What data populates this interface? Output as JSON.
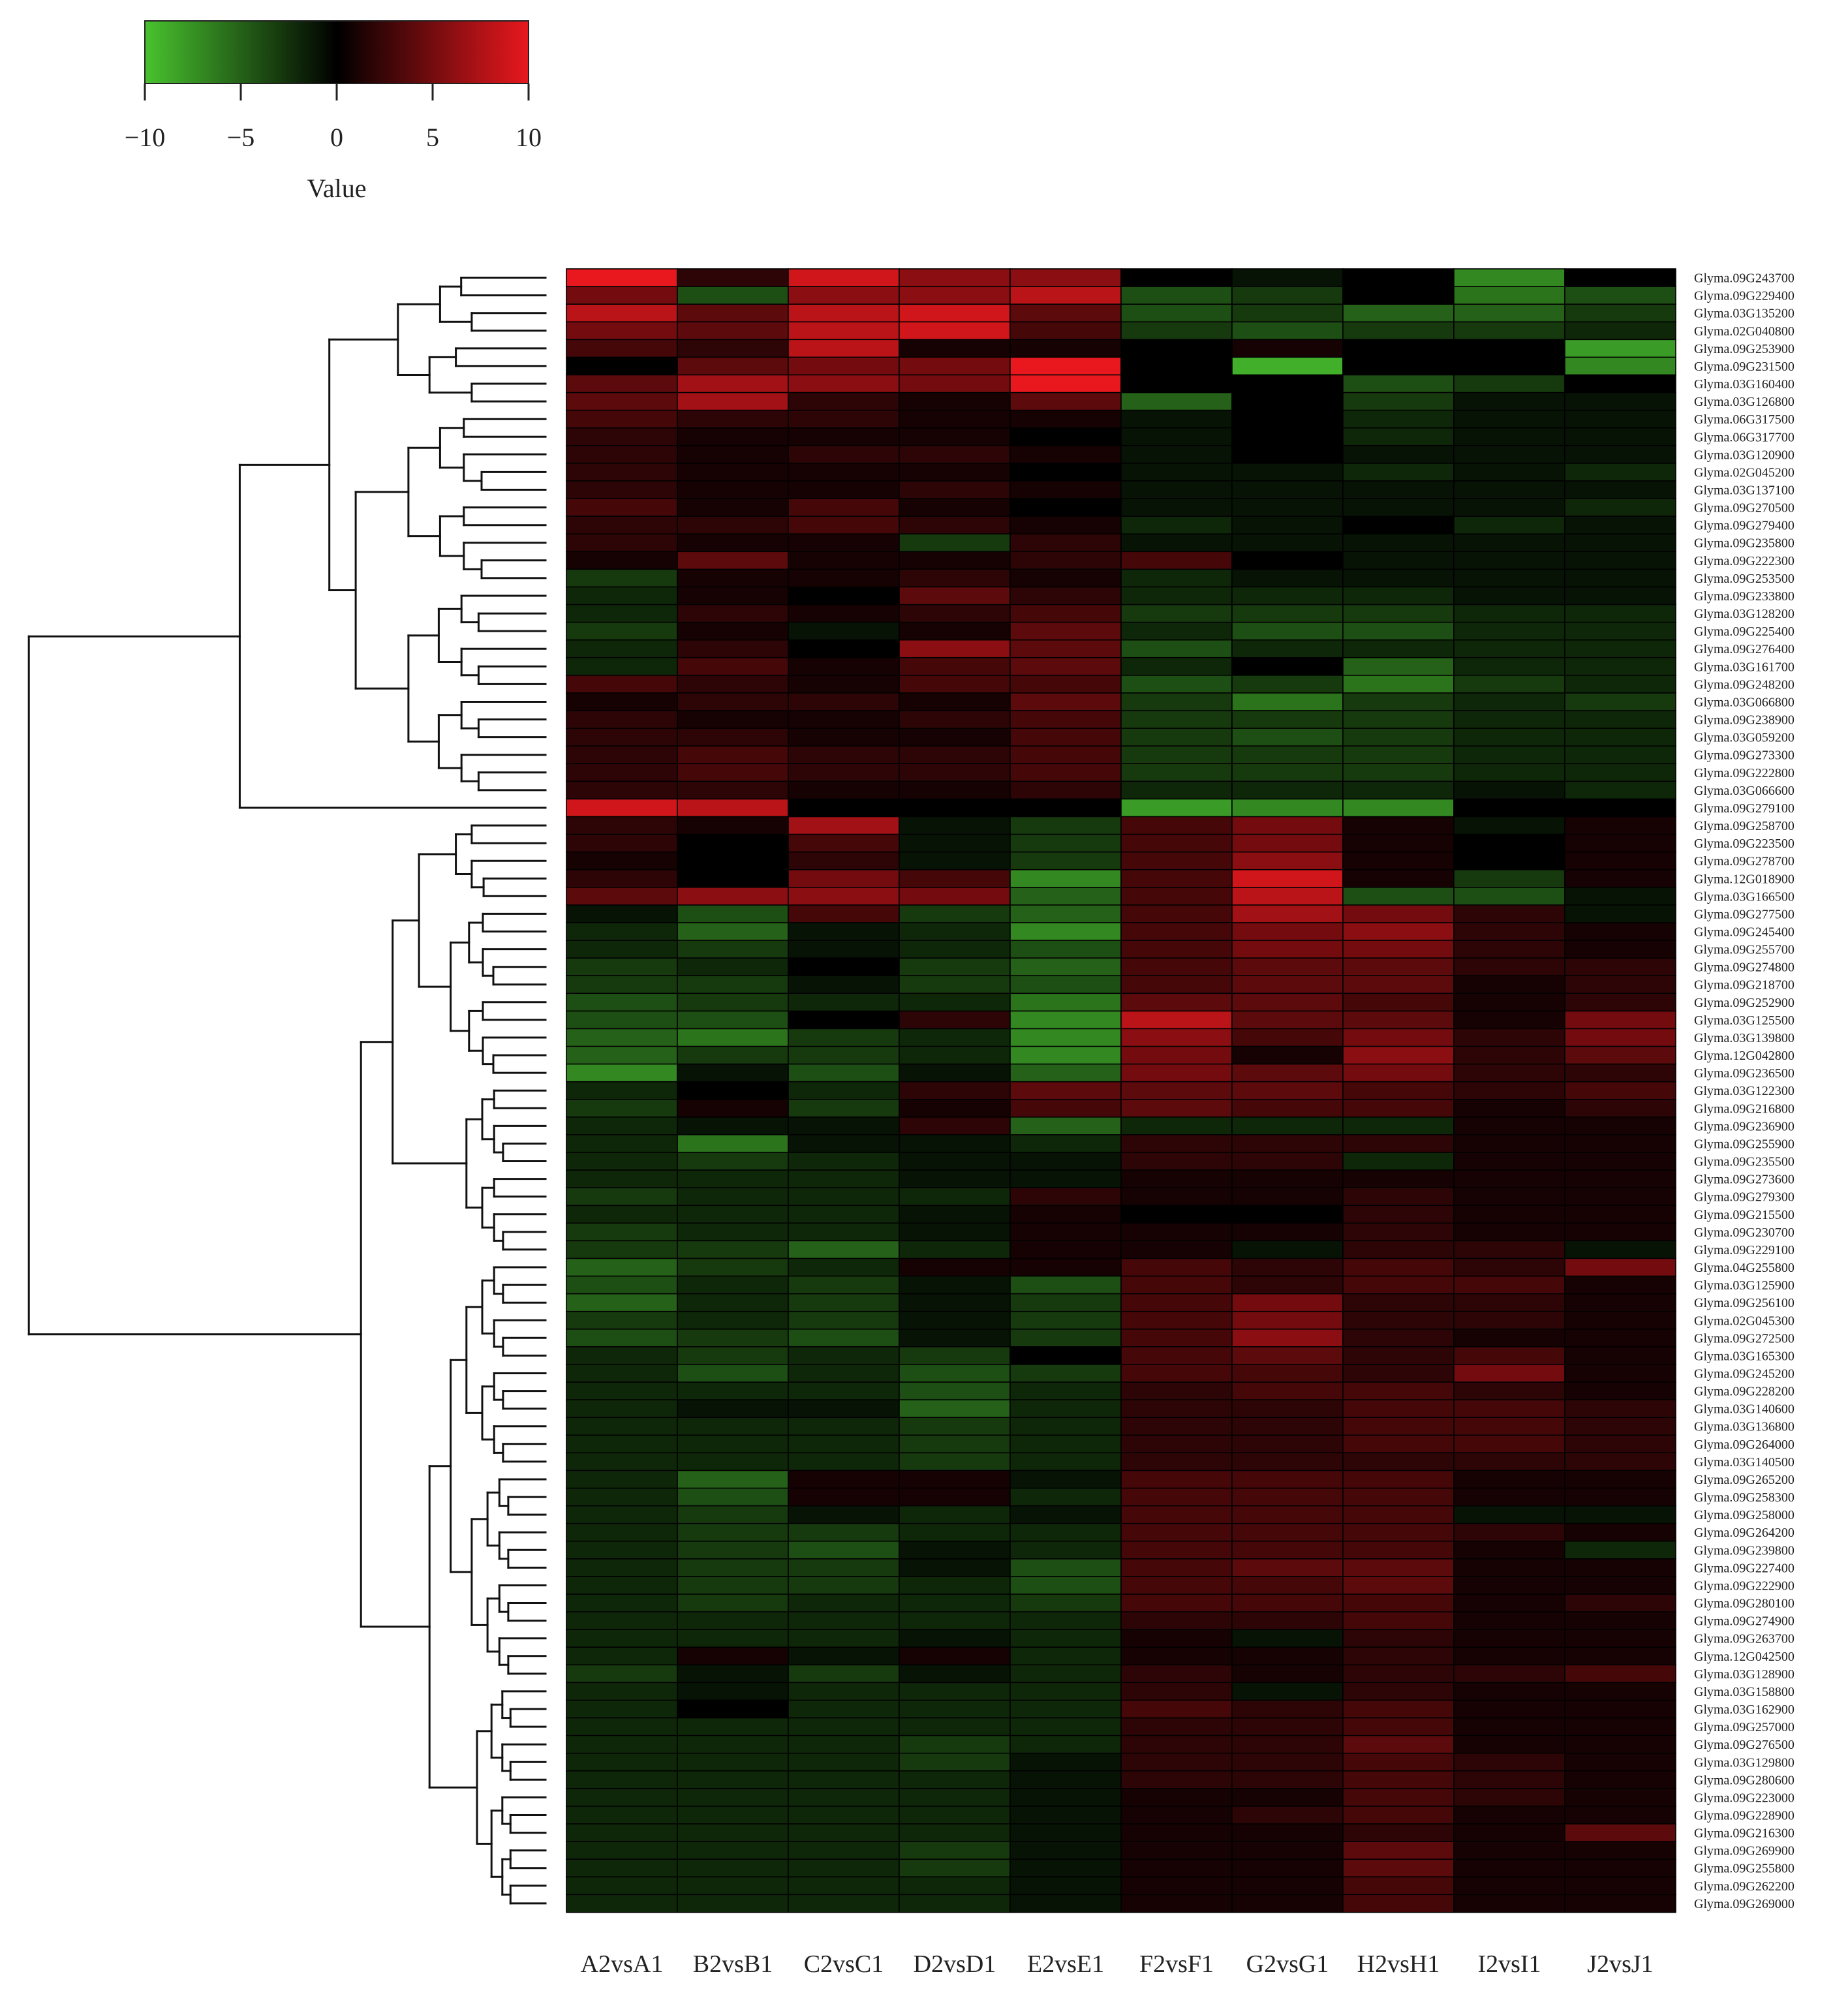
{
  "chart_data": {
    "type": "heatmap",
    "title": "",
    "legend": {
      "title": "Value",
      "ticks": [
        -10,
        -5,
        0,
        5,
        10
      ],
      "tick_labels": [
        "−10",
        "−5",
        "0",
        "5",
        "10"
      ],
      "range": [
        -10,
        10
      ],
      "placement": "top-left",
      "colors": {
        "low": "#49c22f",
        "mid": "#000000",
        "high": "#e8181e"
      }
    },
    "columns": [
      "A2vsA1",
      "B2vsB1",
      "C2vsC1",
      "D2vsD1",
      "E2vsE1",
      "F2vsF1",
      "G2vsG1",
      "H2vsH1",
      "I2vsI1",
      "J2vsJ1"
    ],
    "rows": [
      "Glyma.09G243700",
      "Glyma.09G229400",
      "Glyma.03G135200",
      "Glyma.02G040800",
      "Glyma.09G253900",
      "Glyma.09G231500",
      "Glyma.03G160400",
      "Glyma.03G126800",
      "Glyma.06G317500",
      "Glyma.06G317700",
      "Glyma.03G120900",
      "Glyma.02G045200",
      "Glyma.03G137100",
      "Glyma.09G270500",
      "Glyma.09G279400",
      "Glyma.09G235800",
      "Glyma.09G222300",
      "Glyma.09G253500",
      "Glyma.09G233800",
      "Glyma.03G128200",
      "Glyma.09G225400",
      "Glyma.09G276400",
      "Glyma.03G161700",
      "Glyma.09G248200",
      "Glyma.03G066800",
      "Glyma.09G238900",
      "Glyma.03G059200",
      "Glyma.09G273300",
      "Glyma.09G222800",
      "Glyma.03G066600",
      "Glyma.09G279100",
      "Glyma.09G258700",
      "Glyma.09G223500",
      "Glyma.09G278700",
      "Glyma.12G018900",
      "Glyma.03G166500",
      "Glyma.09G277500",
      "Glyma.09G245400",
      "Glyma.09G255700",
      "Glyma.09G274800",
      "Glyma.09G218700",
      "Glyma.09G252900",
      "Glyma.03G125500",
      "Glyma.03G139800",
      "Glyma.12G042800",
      "Glyma.09G236500",
      "Glyma.03G122300",
      "Glyma.09G216800",
      "Glyma.09G236900",
      "Glyma.09G255900",
      "Glyma.09G235500",
      "Glyma.09G273600",
      "Glyma.09G279300",
      "Glyma.09G215500",
      "Glyma.09G230700",
      "Glyma.09G229100",
      "Glyma.04G255800",
      "Glyma.03G125900",
      "Glyma.09G256100",
      "Glyma.02G045300",
      "Glyma.09G272500",
      "Glyma.03G165300",
      "Glyma.09G245200",
      "Glyma.09G228200",
      "Glyma.03G140600",
      "Glyma.03G136800",
      "Glyma.09G264000",
      "Glyma.03G140500",
      "Glyma.09G265200",
      "Glyma.09G258300",
      "Glyma.09G258000",
      "Glyma.09G264200",
      "Glyma.09G239800",
      "Glyma.09G227400",
      "Glyma.09G222900",
      "Glyma.09G280100",
      "Glyma.09G274900",
      "Glyma.09G263700",
      "Glyma.12G042500",
      "Glyma.03G128900",
      "Glyma.03G158800",
      "Glyma.03G162900",
      "Glyma.09G257000",
      "Glyma.09G276500",
      "Glyma.03G129800",
      "Glyma.09G280600",
      "Glyma.09G223000",
      "Glyma.09G228900",
      "Glyma.09G216300",
      "Glyma.09G269900",
      "Glyma.09G255800",
      "Glyma.09G262200",
      "Glyma.09G269000"
    ],
    "values": [
      [
        10,
        2,
        9,
        6,
        6,
        0,
        -1,
        0,
        -7,
        0
      ],
      [
        5,
        -4,
        6,
        6,
        8,
        -4,
        -3,
        0,
        -6,
        -4
      ],
      [
        8,
        4,
        8,
        9,
        4,
        -4,
        -3,
        -5,
        -5,
        -3
      ],
      [
        5,
        4,
        8,
        9,
        3,
        -3,
        -4,
        -3,
        -3,
        -2
      ],
      [
        3,
        2,
        8,
        1,
        1,
        0,
        1,
        0,
        0,
        -8
      ],
      [
        0,
        4,
        5,
        5,
        10,
        0,
        -9,
        0,
        0,
        -7
      ],
      [
        4,
        7,
        6,
        5,
        10,
        0,
        0,
        -4,
        -3,
        0
      ],
      [
        4,
        7,
        2,
        1,
        4,
        -5,
        0,
        -3,
        -1,
        -1
      ],
      [
        3,
        2,
        2,
        1,
        1,
        -1,
        0,
        -2,
        -1,
        -1
      ],
      [
        2,
        1,
        1,
        1,
        0,
        -1,
        0,
        -2,
        -1,
        -1
      ],
      [
        2,
        1,
        2,
        2,
        1,
        -1,
        0,
        -1,
        -1,
        -1
      ],
      [
        2,
        1,
        1,
        1,
        0,
        -1,
        -1,
        -2,
        -1,
        -2
      ],
      [
        2,
        1,
        1,
        2,
        1,
        -1,
        -1,
        -1,
        -1,
        -1
      ],
      [
        3,
        1,
        3,
        1,
        0,
        -1,
        -1,
        -1,
        -1,
        -2
      ],
      [
        2,
        2,
        3,
        2,
        1,
        -2,
        -1,
        0,
        -2,
        -1
      ],
      [
        2,
        1,
        1,
        -3,
        2,
        -1,
        -1,
        -1,
        -1,
        -1
      ],
      [
        1,
        4,
        1,
        1,
        2,
        3,
        0,
        -1,
        -1,
        -1
      ],
      [
        -3,
        1,
        1,
        2,
        1,
        -2,
        -1,
        -1,
        -1,
        -1
      ],
      [
        -2,
        1,
        0,
        4,
        2,
        -2,
        -2,
        -2,
        -1,
        -1
      ],
      [
        -2,
        2,
        1,
        2,
        3,
        -3,
        -3,
        -3,
        -2,
        -2
      ],
      [
        -3,
        1,
        -1,
        1,
        4,
        -2,
        -4,
        -4,
        -2,
        -2
      ],
      [
        -2,
        2,
        0,
        6,
        4,
        -4,
        -2,
        -2,
        -2,
        -2
      ],
      [
        -2,
        3,
        1,
        3,
        4,
        -2,
        0,
        -5,
        -2,
        -2
      ],
      [
        3,
        2,
        1,
        3,
        3,
        -4,
        -3,
        -6,
        -3,
        -2
      ],
      [
        1,
        2,
        2,
        1,
        4,
        -3,
        -6,
        -3,
        -2,
        -3
      ],
      [
        2,
        1,
        1,
        2,
        3,
        -3,
        -3,
        -3,
        -2,
        -2
      ],
      [
        2,
        2,
        1,
        1,
        3,
        -3,
        -4,
        -3,
        -2,
        -2
      ],
      [
        2,
        3,
        2,
        2,
        3,
        -3,
        -3,
        -3,
        -2,
        -2
      ],
      [
        2,
        3,
        2,
        2,
        3,
        -3,
        -3,
        -3,
        -2,
        -2
      ],
      [
        2,
        2,
        1,
        1,
        2,
        -2,
        -2,
        -2,
        -1,
        -2
      ],
      [
        9,
        8,
        0,
        0,
        0,
        -8,
        -7,
        -7,
        0,
        0
      ],
      [
        2,
        1,
        7,
        -1,
        -3,
        3,
        5,
        1,
        -1,
        1
      ],
      [
        2,
        0,
        3,
        -1,
        -3,
        3,
        5,
        1,
        0,
        1
      ],
      [
        1,
        0,
        2,
        -1,
        -3,
        3,
        6,
        1,
        0,
        1
      ],
      [
        2,
        0,
        5,
        3,
        -7,
        3,
        9,
        1,
        -3,
        1
      ],
      [
        4,
        6,
        6,
        5,
        -5,
        3,
        8,
        -4,
        -4,
        -1
      ],
      [
        -1,
        -4,
        3,
        -3,
        -5,
        3,
        7,
        5,
        2,
        -1
      ],
      [
        -2,
        -5,
        -1,
        -2,
        -7,
        3,
        5,
        6,
        2,
        1
      ],
      [
        -2,
        -3,
        -1,
        -2,
        -4,
        3,
        5,
        5,
        2,
        1
      ],
      [
        -3,
        -2,
        0,
        -3,
        -5,
        3,
        4,
        4,
        2,
        2
      ],
      [
        -3,
        -3,
        -1,
        -3,
        -4,
        3,
        4,
        4,
        1,
        2
      ],
      [
        -4,
        -3,
        -2,
        -2,
        -6,
        4,
        4,
        3,
        1,
        2
      ],
      [
        -4,
        -4,
        0,
        2,
        -7,
        8,
        4,
        4,
        1,
        5
      ],
      [
        -5,
        -6,
        -3,
        -2,
        -7,
        6,
        3,
        5,
        2,
        5
      ],
      [
        -5,
        -3,
        -3,
        -2,
        -7,
        5,
        1,
        6,
        2,
        4
      ],
      [
        -7,
        -1,
        -4,
        -1,
        -5,
        5,
        4,
        5,
        2,
        2
      ],
      [
        -2,
        0,
        -2,
        2,
        4,
        4,
        4,
        3,
        2,
        3
      ],
      [
        -3,
        1,
        -3,
        1,
        3,
        4,
        3,
        3,
        1,
        2
      ],
      [
        -2,
        -1,
        -1,
        2,
        -5,
        -2,
        -2,
        -2,
        1,
        1
      ],
      [
        -2,
        -6,
        -1,
        -1,
        -2,
        2,
        2,
        2,
        1,
        1
      ],
      [
        -2,
        -3,
        -2,
        -1,
        -1,
        2,
        2,
        -2,
        1,
        1
      ],
      [
        -2,
        -2,
        -2,
        -1,
        -1,
        1,
        1,
        1,
        1,
        1
      ],
      [
        -3,
        -2,
        -2,
        -2,
        2,
        1,
        1,
        2,
        1,
        1
      ],
      [
        -2,
        -2,
        -2,
        -1,
        1,
        0,
        0,
        2,
        1,
        1
      ],
      [
        -3,
        -2,
        -2,
        -1,
        1,
        1,
        1,
        2,
        1,
        1
      ],
      [
        -3,
        -3,
        -5,
        -2,
        1,
        1,
        -1,
        2,
        2,
        -1
      ],
      [
        -5,
        -3,
        -2,
        1,
        1,
        3,
        2,
        3,
        2,
        5
      ],
      [
        -4,
        -2,
        -3,
        -1,
        -4,
        3,
        2,
        3,
        3,
        1
      ],
      [
        -5,
        -2,
        -3,
        -1,
        -3,
        3,
        5,
        2,
        2,
        1
      ],
      [
        -3,
        -2,
        -3,
        -1,
        -3,
        3,
        5,
        2,
        2,
        1
      ],
      [
        -4,
        -3,
        -4,
        -1,
        -3,
        3,
        6,
        2,
        1,
        1
      ],
      [
        -2,
        -3,
        -2,
        -3,
        0,
        3,
        4,
        2,
        3,
        1
      ],
      [
        -2,
        -4,
        -2,
        -4,
        -3,
        3,
        3,
        2,
        5,
        1
      ],
      [
        -2,
        -2,
        -2,
        -4,
        -2,
        2,
        3,
        3,
        2,
        1
      ],
      [
        -2,
        -1,
        -1,
        -5,
        -2,
        2,
        2,
        3,
        3,
        2
      ],
      [
        -2,
        -2,
        -2,
        -3,
        -2,
        2,
        2,
        3,
        3,
        2
      ],
      [
        -2,
        -2,
        -2,
        -3,
        -2,
        2,
        2,
        3,
        3,
        2
      ],
      [
        -2,
        -2,
        -2,
        -3,
        -2,
        2,
        2,
        2,
        2,
        2
      ],
      [
        -2,
        -5,
        1,
        1,
        -1,
        3,
        3,
        3,
        1,
        1
      ],
      [
        -2,
        -4,
        1,
        1,
        -2,
        3,
        3,
        3,
        1,
        1
      ],
      [
        -2,
        -3,
        -1,
        -2,
        -1,
        3,
        3,
        3,
        -1,
        -1
      ],
      [
        -2,
        -3,
        -3,
        -2,
        -2,
        3,
        3,
        3,
        2,
        1
      ],
      [
        -2,
        -3,
        -4,
        -1,
        -2,
        3,
        3,
        3,
        1,
        -2
      ],
      [
        -2,
        -3,
        -3,
        -1,
        -4,
        3,
        4,
        4,
        1,
        1
      ],
      [
        -2,
        -3,
        -3,
        -2,
        -4,
        3,
        3,
        4,
        1,
        1
      ],
      [
        -2,
        -3,
        -2,
        -2,
        -3,
        3,
        3,
        3,
        1,
        2
      ],
      [
        -2,
        -2,
        -2,
        -2,
        -2,
        2,
        2,
        3,
        1,
        1
      ],
      [
        -2,
        -2,
        -2,
        -1,
        -2,
        1,
        -1,
        2,
        1,
        1
      ],
      [
        -2,
        1,
        -1,
        1,
        -2,
        1,
        1,
        2,
        1,
        1
      ],
      [
        -3,
        -1,
        -3,
        -1,
        -2,
        2,
        1,
        2,
        2,
        3
      ],
      [
        -2,
        -1,
        -2,
        -2,
        -2,
        2,
        -1,
        2,
        1,
        1
      ],
      [
        -2,
        0,
        -2,
        -2,
        -2,
        3,
        2,
        3,
        1,
        1
      ],
      [
        -2,
        -2,
        -2,
        -2,
        -2,
        2,
        2,
        3,
        1,
        1
      ],
      [
        -2,
        -2,
        -2,
        -3,
        -2,
        2,
        2,
        4,
        1,
        1
      ],
      [
        -2,
        -2,
        -2,
        -3,
        -1,
        2,
        2,
        3,
        2,
        1
      ],
      [
        -2,
        -2,
        -2,
        -2,
        -1,
        2,
        2,
        3,
        2,
        1
      ],
      [
        -2,
        -2,
        -2,
        -2,
        -1,
        1,
        1,
        3,
        2,
        1
      ],
      [
        -2,
        -2,
        -2,
        -2,
        -1,
        1,
        2,
        3,
        1,
        1
      ],
      [
        -2,
        -2,
        -2,
        -2,
        -1,
        1,
        1,
        2,
        1,
        4
      ],
      [
        -2,
        -2,
        -2,
        -3,
        -1,
        1,
        1,
        4,
        1,
        1
      ],
      [
        -2,
        -2,
        -2,
        -3,
        -1,
        1,
        1,
        4,
        1,
        1
      ],
      [
        -2,
        -2,
        -2,
        -2,
        -1,
        1,
        1,
        3,
        1,
        1
      ],
      [
        -2,
        -2,
        -2,
        -2,
        -1,
        1,
        1,
        3,
        1,
        1
      ]
    ],
    "row_dendrogram": true,
    "column_dendrogram": false,
    "grid": false
  }
}
